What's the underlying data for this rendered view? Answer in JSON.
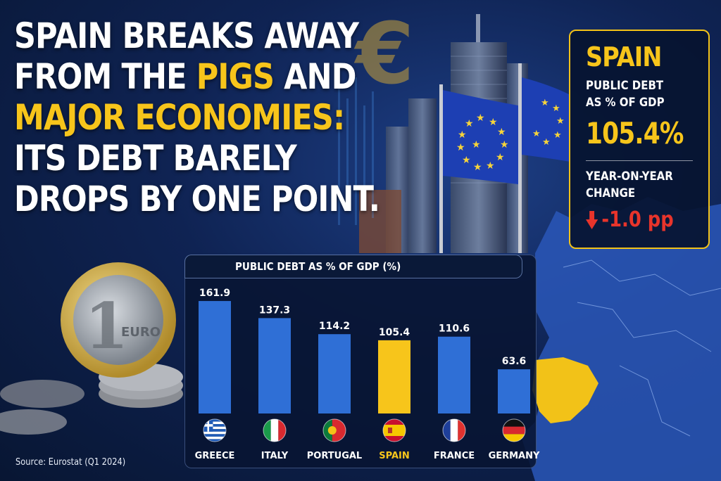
{
  "headline": {
    "line1": "SPAIN BREAKS AWAY",
    "line2_pre": "FROM THE ",
    "line2_hl": "PIGS",
    "line2_post": " AND",
    "line3": "MAJOR ECONOMIES:",
    "line4": "ITS DEBT BARELY",
    "line5": "DROPS BY ONE POINT."
  },
  "infobox": {
    "country": "SPAIN",
    "metric_line1": "PUBLIC DEBT",
    "metric_line2": "AS % OF GDP",
    "value": "105.4%",
    "change_label_line1": "YEAR-ON-YEAR",
    "change_label_line2": "CHANGE",
    "change_value": "-1.0 pp"
  },
  "source": "Source: Eurostat (Q1 2024)",
  "colors": {
    "accent": "#f7c51b",
    "bar_default": "#2f6fd6",
    "bar_highlight": "#f7c51b",
    "negative": "#e8342b",
    "background": "#0f2353"
  },
  "chart_data": {
    "type": "bar",
    "title": "PUBLIC DEBT AS % OF GDP (%)",
    "categories": [
      "GREECE",
      "ITALY",
      "PORTUGAL",
      "SPAIN",
      "FRANCE",
      "GERMANY"
    ],
    "values": [
      161.9,
      137.3,
      114.2,
      105.4,
      110.6,
      63.6
    ],
    "value_labels": [
      "161.9",
      "137.3",
      "114.2",
      "105.4",
      "110.6",
      "63.6"
    ],
    "highlight": "SPAIN",
    "flags": [
      "greece-flag-icon",
      "italy-flag-icon",
      "portugal-flag-icon",
      "spain-flag-icon",
      "france-flag-icon",
      "germany-flag-icon"
    ],
    "ylim": [
      0,
      165
    ],
    "grid": false,
    "xlabel": "",
    "ylabel": ""
  }
}
